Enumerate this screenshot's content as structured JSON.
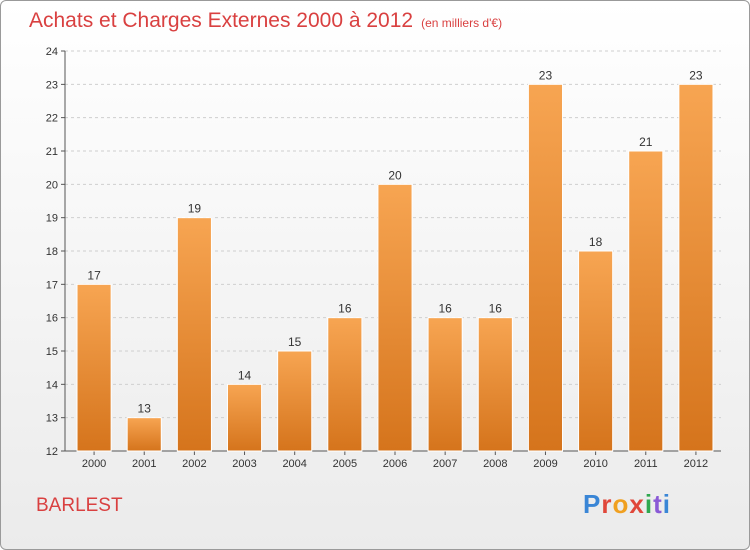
{
  "title": "Achats et Charges Externes 2000 à 2012",
  "unit": "(en milliers d'€)",
  "location": "BARLEST",
  "logo": {
    "text": "Proxiti",
    "letter_colors": [
      "#3a86d6",
      "#e0473a",
      "#f0a020",
      "#e0473a",
      "#2fa84f",
      "#8a5ad6",
      "#3a86d6"
    ]
  },
  "chart_data": {
    "type": "bar",
    "categories": [
      "2000",
      "2001",
      "2002",
      "2003",
      "2004",
      "2005",
      "2006",
      "2007",
      "2008",
      "2009",
      "2010",
      "2011",
      "2012"
    ],
    "values": [
      17,
      13,
      19,
      14,
      15,
      16,
      20,
      16,
      16,
      23,
      18,
      21,
      23
    ],
    "title": "Achats et Charges Externes 2000 à 2012",
    "xlabel": "",
    "ylabel": "",
    "ylim": [
      12,
      24
    ],
    "yticks": [
      12,
      13,
      14,
      15,
      16,
      17,
      18,
      19,
      20,
      21,
      22,
      23,
      24
    ],
    "grid": true,
    "bar_color_top": "#f7a552",
    "bar_color_bottom": "#d5741c"
  }
}
